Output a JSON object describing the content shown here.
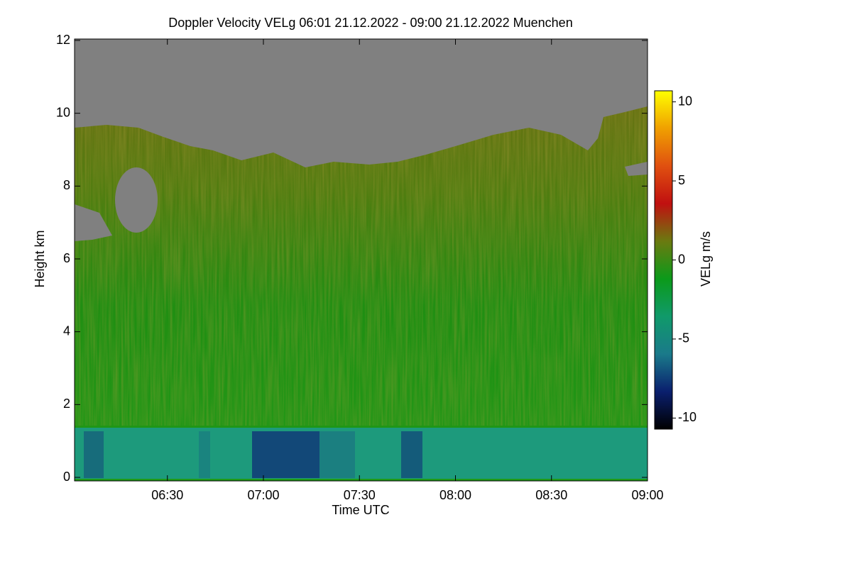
{
  "chart_data": {
    "type": "heatmap",
    "title": "Doppler Velocity VELg   06:01 21.12.2022 - 09:00 21.12.2022 Muenchen",
    "x_label": "Time UTC",
    "y_label": "Height km",
    "xlim": [
      "06:01",
      "09:00"
    ],
    "xticks": [
      "06:30",
      "07:00",
      "07:30",
      "08:00",
      "08:30",
      "09:00"
    ],
    "ylim": [
      0,
      12
    ],
    "yticks": [
      0,
      2,
      4,
      6,
      8,
      10,
      12
    ],
    "colorbar": {
      "label": "VELg m/s",
      "clim": [
        -10.7,
        10.7
      ],
      "ticks": [
        -10,
        -5,
        0,
        5,
        10
      ],
      "colormap": [
        "#000000",
        "#0a1f6e",
        "#1a7a8a",
        "#109a6a",
        "#0b9a1a",
        "#6b7a10",
        "#c01010",
        "#e05010",
        "#f0a000",
        "#ffff00"
      ]
    }
  }
}
